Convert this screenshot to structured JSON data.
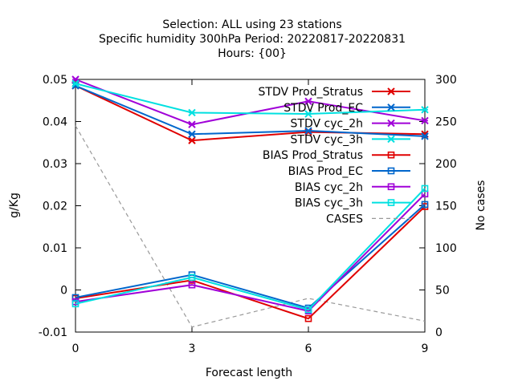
{
  "chart_data": {
    "type": "line",
    "title_lines": [
      "Selection: ALL using    23 stations",
      "Specific humidity 300hPa   Period: 20220817-20220831",
      "Hours: {00}"
    ],
    "xlabel": "Forecast length",
    "ylabel": "g/Kg",
    "y2label": "No cases",
    "x": [
      0,
      3,
      6,
      9
    ],
    "x_ticks": [
      "0",
      "3",
      "6",
      "9"
    ],
    "xlim": [
      0,
      9
    ],
    "ylim": [
      -0.01,
      0.05
    ],
    "y_ticks": [
      "0.05",
      "0.04",
      "0.03",
      "0.02",
      "0.01",
      "0",
      "-0.01"
    ],
    "y2lim": [
      0,
      300
    ],
    "y2_ticks": [
      "300",
      "250",
      "200",
      "150",
      "100",
      "50",
      "0"
    ],
    "legend_position": "top-right",
    "grid": "none",
    "series": [
      {
        "name": "STDV Prod_Stratus",
        "color": "#e00000",
        "marker": "x",
        "axis": "y",
        "values": [
          0.0485,
          0.0355,
          0.0375,
          0.037
        ]
      },
      {
        "name": "STDV Prod_EC",
        "color": "#0066cc",
        "marker": "x",
        "axis": "y",
        "values": [
          0.0485,
          0.037,
          0.0378,
          0.0365
        ]
      },
      {
        "name": "STDV cyc_2h",
        "color": "#a000d8",
        "marker": "x",
        "axis": "y",
        "values": [
          0.05,
          0.0393,
          0.0448,
          0.0402
        ]
      },
      {
        "name": "STDV cyc_3h",
        "color": "#00e0e0",
        "marker": "x",
        "axis": "y",
        "values": [
          0.049,
          0.0421,
          0.0418,
          0.0428
        ]
      },
      {
        "name": "BIAS Prod_Stratus",
        "color": "#e00000",
        "marker": "square",
        "axis": "y",
        "values": [
          -0.002,
          0.0023,
          -0.0068,
          0.0198
        ]
      },
      {
        "name": "BIAS Prod_EC",
        "color": "#0066cc",
        "marker": "square",
        "axis": "y",
        "values": [
          -0.0018,
          0.0036,
          -0.0043,
          0.0203
        ]
      },
      {
        "name": "BIAS cyc_2h",
        "color": "#a000d8",
        "marker": "square",
        "axis": "y",
        "values": [
          -0.0028,
          0.0012,
          -0.005,
          0.0228
        ]
      },
      {
        "name": "BIAS cyc_3h",
        "color": "#00e0e0",
        "marker": "square",
        "axis": "y",
        "values": [
          -0.0033,
          0.003,
          -0.0047,
          0.0241
        ]
      },
      {
        "name": "CASES",
        "color": "#999999",
        "marker": "none",
        "dashed": true,
        "axis": "y2",
        "values": [
          245,
          6,
          40,
          13
        ]
      }
    ]
  }
}
